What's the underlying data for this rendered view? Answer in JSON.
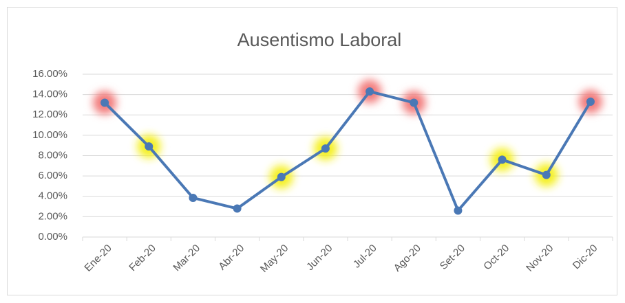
{
  "chart_data": {
    "type": "line",
    "title": "Ausentismo Laboral",
    "categories": [
      "Ene-20",
      "Feb-20",
      "Mar-20",
      "Abr-20",
      "May-20",
      "Jun-20",
      "Jul-20",
      "Ago-20",
      "Set-20",
      "Oct-20",
      "Nov-20",
      "Dic-20"
    ],
    "series": [
      {
        "name": "Ausentismo",
        "color": "#4a78b5",
        "values": [
          13.2,
          8.9,
          3.85,
          2.8,
          5.9,
          8.7,
          14.3,
          13.2,
          2.6,
          7.6,
          6.1,
          13.3
        ]
      }
    ],
    "marker_highlights": [
      "#f27c7c",
      "#f5f020",
      null,
      null,
      "#f5f020",
      "#f5f020",
      "#f27c7c",
      "#f27c7c",
      null,
      "#f5f020",
      "#f5f020",
      "#f27c7c"
    ],
    "ylim": [
      0,
      16
    ],
    "yticks": [
      {
        "value": 0,
        "label": "0.00%"
      },
      {
        "value": 2,
        "label": "2.00%"
      },
      {
        "value": 4,
        "label": "4.00%"
      },
      {
        "value": 6,
        "label": "6.00%"
      },
      {
        "value": 8,
        "label": "8.00%"
      },
      {
        "value": 10,
        "label": "10.00%"
      },
      {
        "value": 12,
        "label": "12.00%"
      },
      {
        "value": 14,
        "label": "14.00%"
      },
      {
        "value": 16,
        "label": "16.00%"
      }
    ],
    "grid": true
  }
}
